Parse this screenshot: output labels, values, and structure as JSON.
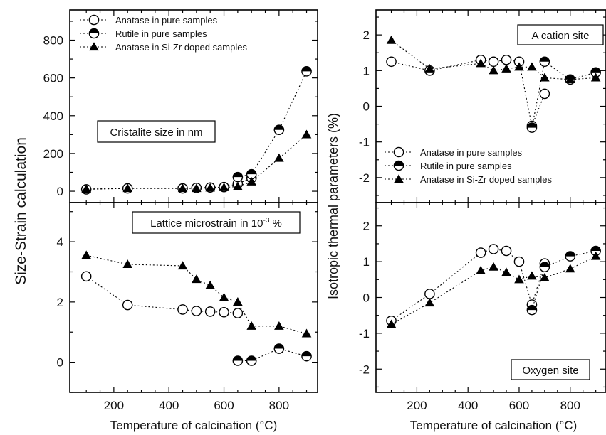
{
  "figure": {
    "left_ylabel": "Size-Strain calculation",
    "right_ylabel": "Isotropic thermal parameters (%)",
    "left_xlabel": "Temperature of calcination (°C)",
    "right_xlabel": "Temperature of calcination (°C)"
  },
  "legend": {
    "anatase_pure": "Anatase in pure samples",
    "rutile_pure": "Rutile in pure samples",
    "anatase_doped": "Anatase in Si-Zr doped samples"
  },
  "chart_data": [
    {
      "type": "line",
      "panel": "top-left",
      "annotation": "Cristalite size in nm",
      "xlim": [
        40,
        940
      ],
      "ylim": [
        -60,
        960
      ],
      "xticks": [
        200,
        400,
        600,
        800
      ],
      "yticks": [
        0,
        200,
        400,
        600,
        800
      ],
      "show_xtick_labels": false,
      "legend_position": "top-left",
      "grid": false,
      "series": [
        {
          "name": "Anatase in pure samples",
          "marker": "open-circle",
          "x": [
            100,
            250,
            450,
            500,
            550,
            600,
            650,
            700
          ],
          "y": [
            10,
            15,
            15,
            18,
            20,
            22,
            40,
            70
          ]
        },
        {
          "name": "Rutile in pure samples",
          "marker": "half-circle",
          "x": [
            650,
            700,
            800,
            900
          ],
          "y": [
            75,
            90,
            325,
            635
          ]
        },
        {
          "name": "Anatase in Si-Zr doped samples",
          "marker": "filled-triangle",
          "x": [
            100,
            250,
            450,
            500,
            550,
            600,
            650,
            700,
            800,
            900
          ],
          "y": [
            12,
            15,
            15,
            15,
            18,
            20,
            25,
            50,
            175,
            300
          ]
        }
      ]
    },
    {
      "type": "line",
      "panel": "bottom-left",
      "annotation": "Lattice microstrain in 10^-3 %",
      "annotation_text": "Lattice microstrain in 10",
      "annotation_sup": "-3",
      "annotation_unit": " %",
      "xlim": [
        40,
        940
      ],
      "ylim": [
        -1,
        5.3
      ],
      "xticks": [
        200,
        400,
        600,
        800
      ],
      "yticks": [
        0,
        2,
        4
      ],
      "grid": false,
      "series": [
        {
          "name": "Anatase in pure samples",
          "marker": "open-circle",
          "x": [
            100,
            250,
            450,
            500,
            550,
            600,
            650
          ],
          "y": [
            2.85,
            1.9,
            1.75,
            1.7,
            1.68,
            1.66,
            1.63
          ]
        },
        {
          "name": "Rutile in pure samples",
          "marker": "half-circle",
          "x": [
            650,
            700,
            800,
            900
          ],
          "y": [
            0.05,
            0.05,
            0.45,
            0.2
          ]
        },
        {
          "name": "Anatase in Si-Zr doped samples",
          "marker": "filled-triangle",
          "x": [
            100,
            250,
            450,
            500,
            550,
            600,
            650,
            700,
            800,
            900
          ],
          "y": [
            3.55,
            3.25,
            3.2,
            2.75,
            2.55,
            2.15,
            2.0,
            1.2,
            1.2,
            0.95
          ]
        }
      ]
    },
    {
      "type": "line",
      "panel": "top-right",
      "annotation": "A cation site",
      "xlim": [
        40,
        940
      ],
      "ylim": [
        -2.7,
        2.7
      ],
      "xticks": [
        200,
        400,
        600,
        800
      ],
      "yticks": [
        -2,
        -1,
        0,
        1,
        2
      ],
      "show_xtick_labels": false,
      "legend_position": "bottom-left",
      "grid": false,
      "series": [
        {
          "name": "Anatase in pure samples",
          "marker": "open-circle",
          "x": [
            100,
            250,
            450,
            500,
            550,
            600,
            650,
            700
          ],
          "y": [
            1.25,
            1.0,
            1.3,
            1.25,
            1.3,
            1.25,
            -0.55,
            0.35
          ]
        },
        {
          "name": "Rutile in pure samples",
          "marker": "half-circle",
          "x": [
            650,
            700,
            800,
            900
          ],
          "y": [
            -0.6,
            1.25,
            0.75,
            0.95
          ]
        },
        {
          "name": "Anatase in Si-Zr doped samples",
          "marker": "filled-triangle",
          "x": [
            100,
            250,
            450,
            500,
            550,
            600,
            650,
            700,
            800,
            900
          ],
          "y": [
            1.85,
            1.05,
            1.2,
            1.0,
            1.05,
            1.1,
            1.1,
            0.8,
            0.75,
            0.8
          ]
        }
      ]
    },
    {
      "type": "line",
      "panel": "bottom-right",
      "annotation": "Oxygen site",
      "xlim": [
        40,
        940
      ],
      "ylim": [
        -2.65,
        2.65
      ],
      "xticks": [
        200,
        400,
        600,
        800
      ],
      "yticks": [
        -2,
        -1,
        0,
        1,
        2
      ],
      "grid": false,
      "series": [
        {
          "name": "Anatase in pure samples",
          "marker": "open-circle",
          "x": [
            100,
            250,
            450,
            500,
            550,
            600,
            650,
            700
          ],
          "y": [
            -0.65,
            0.1,
            1.25,
            1.35,
            1.3,
            1.0,
            -0.2,
            0.95
          ]
        },
        {
          "name": "Rutile in pure samples",
          "marker": "half-circle",
          "x": [
            650,
            700,
            800,
            900
          ],
          "y": [
            -0.35,
            0.85,
            1.15,
            1.3
          ]
        },
        {
          "name": "Anatase in Si-Zr doped samples",
          "marker": "filled-triangle",
          "x": [
            100,
            250,
            450,
            500,
            550,
            600,
            650,
            700,
            800,
            900
          ],
          "y": [
            -0.75,
            -0.15,
            0.75,
            0.85,
            0.7,
            0.5,
            0.6,
            0.55,
            0.8,
            1.15
          ]
        }
      ]
    }
  ]
}
